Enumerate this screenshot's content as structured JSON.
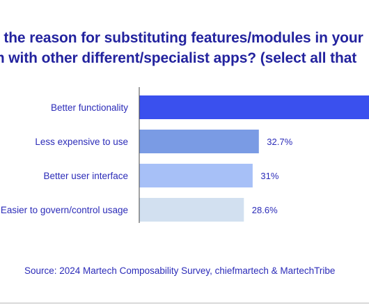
{
  "title_lines": [
    "s the reason for substituting features/modules in your",
    "m with other different/specialist apps? (select all that"
  ],
  "source": "Source: 2024 Martech Composability Survey, chiefmartech & MartechTribe",
  "chart_data": {
    "type": "bar",
    "orientation": "horizontal",
    "categories": [
      "Better functionality",
      "Less expensive to use",
      "Better user interface",
      "Easier to govern/control usage"
    ],
    "values": [
      null,
      32.7,
      31,
      28.6
    ],
    "value_labels": [
      "",
      "32.7%",
      "31%",
      "28.6%"
    ],
    "colors": [
      "#3a50ee",
      "#7a9be4",
      "#a7c0f7",
      "#d2e0f0"
    ],
    "xlim": [
      0,
      63
    ],
    "grid": false,
    "legend": "none"
  }
}
